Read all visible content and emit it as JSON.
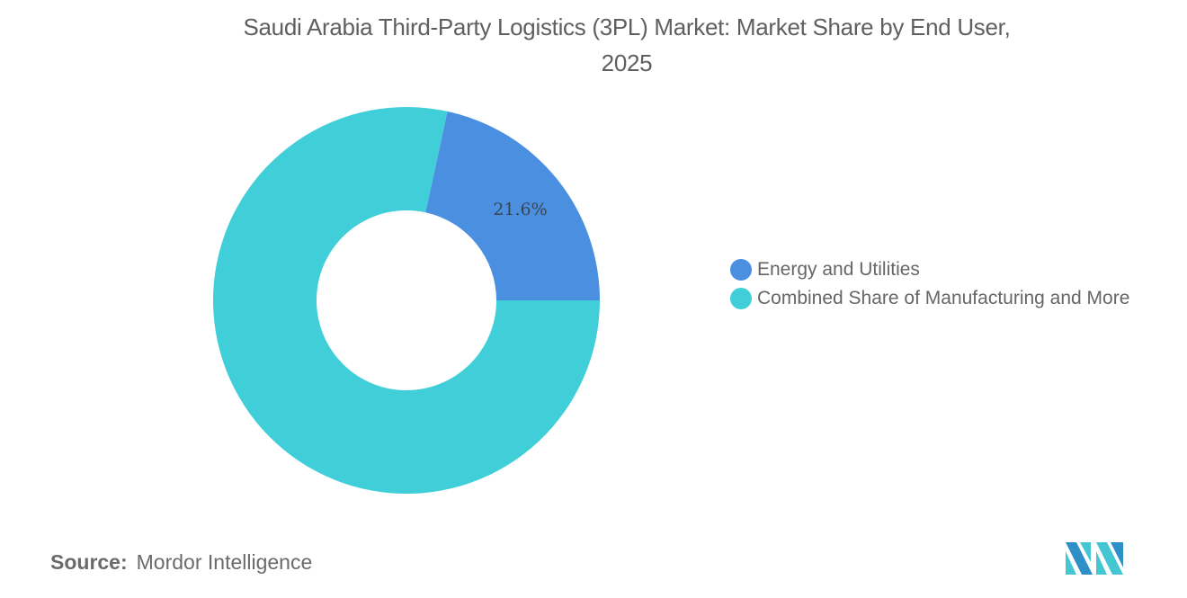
{
  "title": {
    "line1": "Saudi Arabia Third-Party Logistics (3PL) Market: Market Share by End User,",
    "line2": "2025"
  },
  "chart_data": {
    "type": "pie",
    "variant": "donut",
    "title": "Saudi Arabia Third-Party Logistics (3PL) Market: Market Share by End User, 2025",
    "categories": [
      "Energy and Utilities",
      "Combined Share of Manufacturing and More"
    ],
    "values": [
      21.6,
      78.4
    ],
    "data_labels": [
      "21.6%",
      ""
    ],
    "colors": [
      "#4a8fe0",
      "#40cfd9"
    ],
    "legend_position": "right",
    "unit": "%"
  },
  "legend": {
    "items": [
      {
        "label": "Energy and Utilities",
        "color": "#4a8fe0"
      },
      {
        "label": "Combined Share of Manufacturing and More",
        "color": "#40cfd9"
      }
    ]
  },
  "source": {
    "key": "Source:",
    "value": "Mordor Intelligence"
  },
  "logo": {
    "name": "mordor-intelligence-logo",
    "colors": [
      "#2f8fc9",
      "#45c7d3"
    ]
  }
}
